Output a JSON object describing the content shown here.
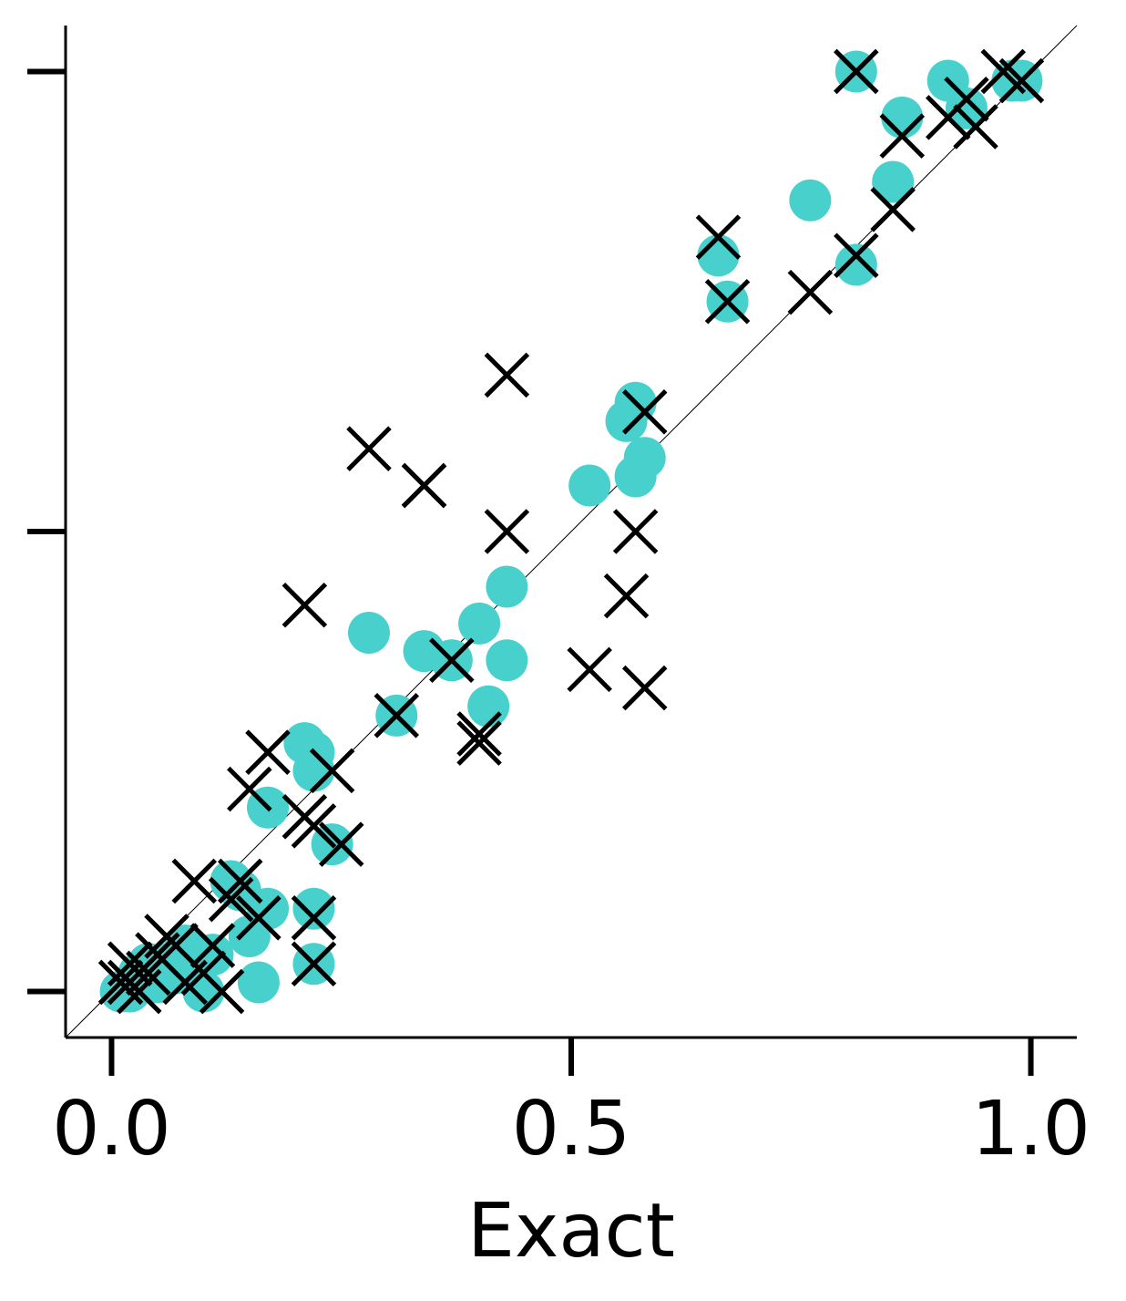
{
  "chart_data": {
    "type": "scatter",
    "title": "",
    "xlabel": "Exact",
    "ylabel": "",
    "xlim": [
      -0.05,
      1.05
    ],
    "ylim": [
      -0.05,
      1.05
    ],
    "x_ticks": [
      0.0,
      0.5,
      1.0
    ],
    "x_tick_labels": [
      "0.0",
      "0.5",
      "1.0"
    ],
    "y_ticks": [
      0.0,
      0.5,
      1.0
    ],
    "y_tick_labels": [
      "",
      "",
      ""
    ],
    "grid": false,
    "legend": "none",
    "reference_line": {
      "from": [
        -0.05,
        -0.05
      ],
      "to": [
        1.05,
        1.05
      ]
    },
    "series": [
      {
        "marker": "circle",
        "color": "#48D1CC",
        "points": [
          [
            0.81,
            1.0
          ],
          [
            0.91,
            0.99
          ],
          [
            0.93,
            0.96
          ],
          [
            0.98,
            0.99
          ],
          [
            0.99,
            0.99
          ],
          [
            0.86,
            0.95
          ],
          [
            0.85,
            0.88
          ],
          [
            0.76,
            0.86
          ],
          [
            0.81,
            0.79
          ],
          [
            0.66,
            0.8
          ],
          [
            0.67,
            0.75
          ],
          [
            0.57,
            0.64
          ],
          [
            0.56,
            0.62
          ],
          [
            0.58,
            0.58
          ],
          [
            0.57,
            0.56
          ],
          [
            0.52,
            0.55
          ],
          [
            0.43,
            0.44
          ],
          [
            0.4,
            0.4
          ],
          [
            0.28,
            0.39
          ],
          [
            0.34,
            0.37
          ],
          [
            0.37,
            0.36
          ],
          [
            0.43,
            0.36
          ],
          [
            0.41,
            0.31
          ],
          [
            0.31,
            0.3
          ],
          [
            0.21,
            0.27
          ],
          [
            0.22,
            0.26
          ],
          [
            0.22,
            0.24
          ],
          [
            0.17,
            0.2
          ],
          [
            0.24,
            0.16
          ],
          [
            0.13,
            0.12
          ],
          [
            0.14,
            0.11
          ],
          [
            0.17,
            0.09
          ],
          [
            0.15,
            0.06
          ],
          [
            0.22,
            0.09
          ],
          [
            0.22,
            0.03
          ],
          [
            0.16,
            0.01
          ],
          [
            0.1,
            0.0
          ],
          [
            0.07,
            0.02
          ],
          [
            0.05,
            0.01
          ],
          [
            0.02,
            0.0
          ],
          [
            0.01,
            0.0
          ],
          [
            0.03,
            0.02
          ],
          [
            0.08,
            0.05
          ],
          [
            0.11,
            0.04
          ],
          [
            0.06,
            0.03
          ],
          [
            0.04,
            0.03
          ]
        ]
      },
      {
        "marker": "x",
        "color": "#000000",
        "points": [
          [
            0.81,
            1.0
          ],
          [
            0.97,
            1.0
          ],
          [
            0.99,
            0.99
          ],
          [
            0.93,
            0.97
          ],
          [
            0.91,
            0.95
          ],
          [
            0.94,
            0.94
          ],
          [
            0.86,
            0.93
          ],
          [
            0.85,
            0.85
          ],
          [
            0.81,
            0.8
          ],
          [
            0.66,
            0.82
          ],
          [
            0.67,
            0.75
          ],
          [
            0.76,
            0.76
          ],
          [
            0.43,
            0.67
          ],
          [
            0.58,
            0.63
          ],
          [
            0.28,
            0.59
          ],
          [
            0.34,
            0.55
          ],
          [
            0.34,
            0.55
          ],
          [
            0.43,
            0.5
          ],
          [
            0.57,
            0.5
          ],
          [
            0.21,
            0.42
          ],
          [
            0.56,
            0.43
          ],
          [
            0.52,
            0.35
          ],
          [
            0.58,
            0.33
          ],
          [
            0.37,
            0.36
          ],
          [
            0.31,
            0.3
          ],
          [
            0.4,
            0.27
          ],
          [
            0.4,
            0.28
          ],
          [
            0.17,
            0.26
          ],
          [
            0.24,
            0.24
          ],
          [
            0.15,
            0.22
          ],
          [
            0.21,
            0.19
          ],
          [
            0.22,
            0.18
          ],
          [
            0.25,
            0.16
          ],
          [
            0.09,
            0.12
          ],
          [
            0.14,
            0.12
          ],
          [
            0.13,
            0.1
          ],
          [
            0.16,
            0.08
          ],
          [
            0.22,
            0.08
          ],
          [
            0.22,
            0.03
          ],
          [
            0.11,
            0.05
          ],
          [
            0.1,
            0.02
          ],
          [
            0.12,
            0.0
          ],
          [
            0.08,
            0.01
          ],
          [
            0.04,
            0.02
          ],
          [
            0.02,
            0.01
          ],
          [
            0.03,
            0.0
          ],
          [
            0.01,
            0.01
          ],
          [
            0.05,
            0.04
          ],
          [
            0.06,
            0.06
          ],
          [
            0.02,
            0.03
          ],
          [
            0.07,
            0.05
          ]
        ]
      }
    ]
  }
}
